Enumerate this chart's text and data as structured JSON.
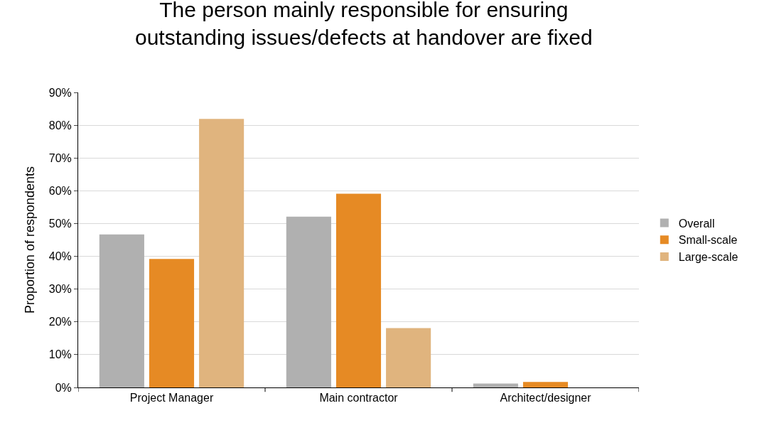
{
  "chart_data": {
    "type": "bar",
    "title": "The person mainly responsible for ensuring outstanding issues/defects at handover are fixed",
    "ylabel": "Proportion of respondents",
    "categories": [
      "Project Manager",
      "Main contractor",
      "Architect/designer"
    ],
    "series": [
      {
        "name": "Overall",
        "color": "#b0b0b0",
        "values": [
          46.7,
          52.1,
          1.2
        ]
      },
      {
        "name": "Small-scale",
        "color": "#e68a24",
        "values": [
          39.2,
          59.1,
          1.7
        ]
      },
      {
        "name": "Large-scale",
        "color": "#e0b47e",
        "values": [
          81.9,
          18.1,
          0
        ]
      }
    ],
    "ylim": [
      0,
      90
    ],
    "yticks": [
      {
        "value": 0,
        "label": "0%"
      },
      {
        "value": 10,
        "label": "10%"
      },
      {
        "value": 20,
        "label": "20%"
      },
      {
        "value": 30,
        "label": "30%"
      },
      {
        "value": 40,
        "label": "40%"
      },
      {
        "value": 50,
        "label": "50%"
      },
      {
        "value": 60,
        "label": "60%"
      },
      {
        "value": 70,
        "label": "70%"
      },
      {
        "value": 80,
        "label": "80%"
      },
      {
        "value": 90,
        "label": "90%"
      }
    ],
    "grid": "y",
    "legend": "right"
  }
}
